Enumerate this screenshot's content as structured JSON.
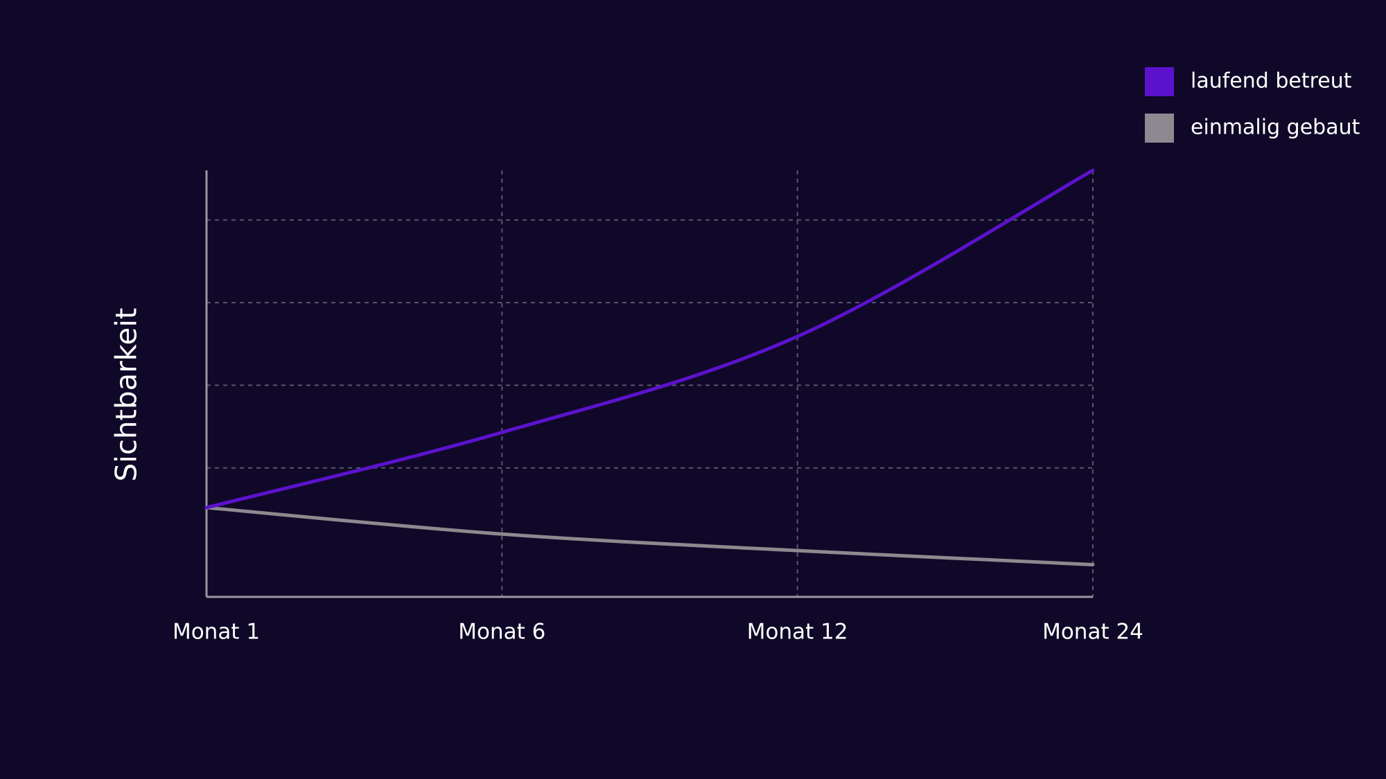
{
  "chart_data": {
    "type": "line",
    "y_label": "Sichtbarkeit",
    "categories": [
      "Monat 1",
      "Monat 6",
      "Monat 12",
      "Monat 24"
    ],
    "series": [
      {
        "name": "laufend betreut",
        "color": "#5b12cc",
        "values": [
          0.52,
          1.43,
          2.59,
          4.6
        ]
      },
      {
        "name": "einmalig gebaut",
        "color": "#8c8a90",
        "values": [
          0.52,
          0.2,
          0.0,
          -0.17
        ]
      }
    ],
    "ylim": [
      -0.56,
      4.6
    ],
    "yticks": [
      1,
      2,
      3,
      4
    ],
    "grid": true,
    "legend": "top-right"
  }
}
